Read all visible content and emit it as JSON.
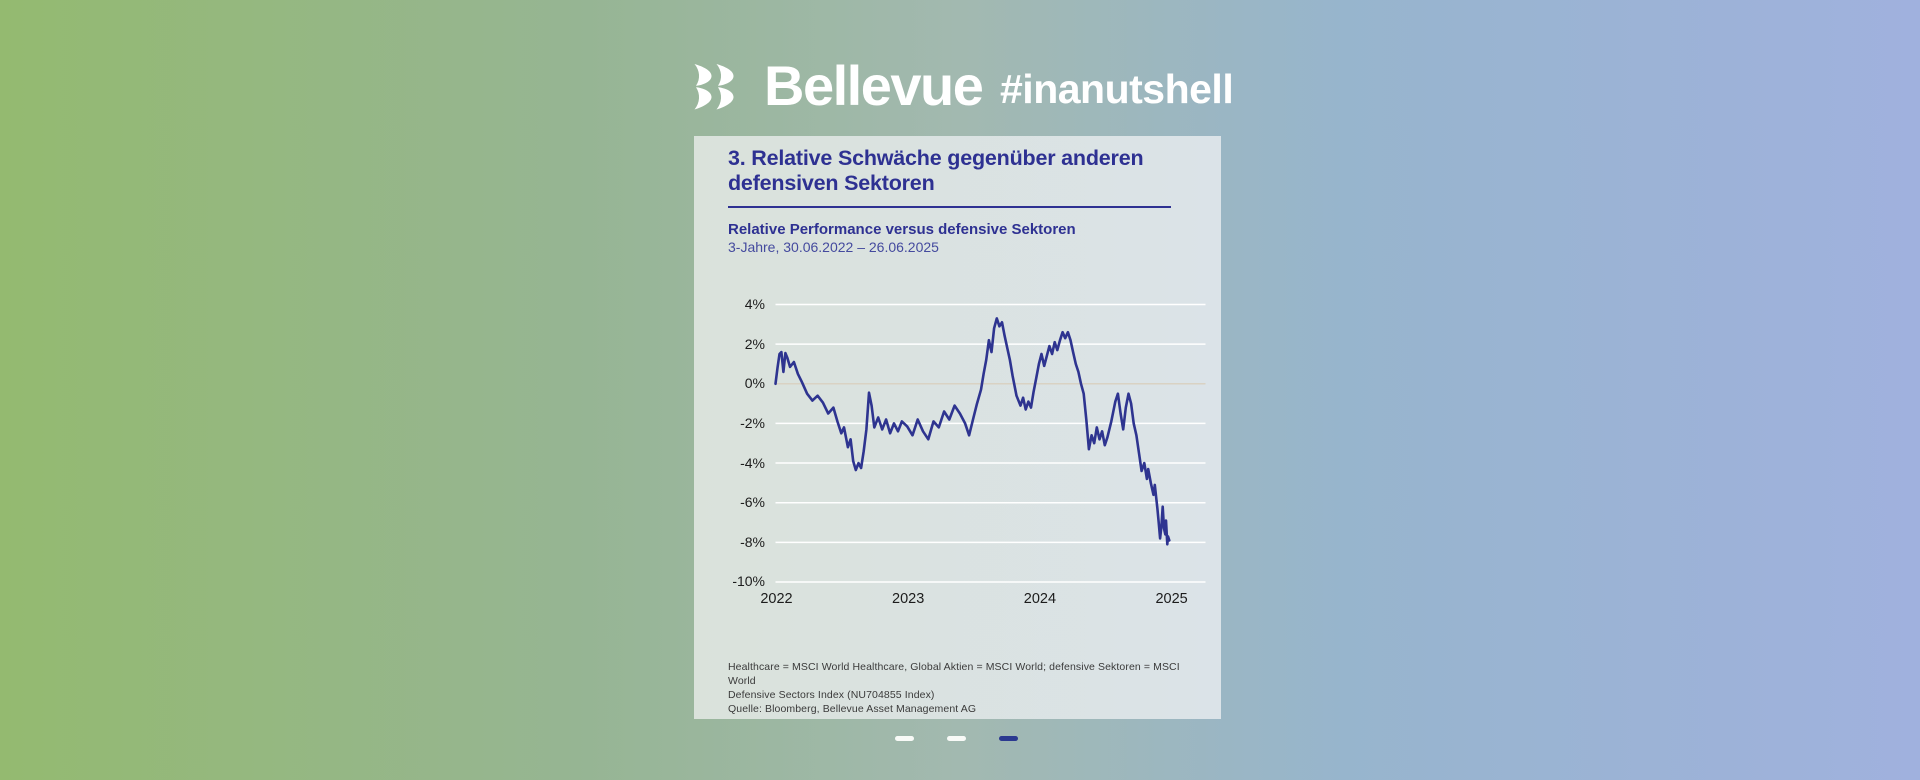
{
  "header": {
    "brand": "Bellevue",
    "hashtag": "#inanutshell"
  },
  "card": {
    "title_line1": "3. Relative Schwäche gegenüber  anderen",
    "title_line2": "defensiven Sektoren",
    "chart_heading": "Relative Performance versus defensive Sektoren",
    "chart_period": "3-Jahre, 30.06.2022 – 26.06.2025",
    "footnote_line1": "Healthcare = MSCI World Healthcare, Global Aktien = MSCI World; defensive Sektoren = MSCI World",
    "footnote_line2": "Defensive Sectors Index (NU704855 Index)",
    "footnote_line3": "Quelle: Bloomberg, Bellevue Asset Management AG"
  },
  "carousel": {
    "dash_count": 3,
    "active_index": 2
  },
  "colors": {
    "brand_navy": "#2e3192",
    "line_navy": "#2e3490",
    "active_dash": "#2b3990",
    "background_left": "#94ba70",
    "background_right": "#a0b1de",
    "card_background": "#dae2e0",
    "gridline": "#ffffff",
    "zero_gridline": "#d9d2c3"
  },
  "chart_data": {
    "type": "line",
    "title": "Relative Performance versus defensive Sektoren",
    "subtitle": "3-Jahre, 30.06.2022 – 26.06.2025",
    "xlabel": "",
    "ylabel": "%",
    "ylim": [
      -10,
      4
    ],
    "yticks": [
      4,
      2,
      0,
      -2,
      -4,
      -6,
      -8,
      -10
    ],
    "ytick_suffix": "%",
    "xticks": [
      {
        "pos": 0,
        "label": "2022"
      },
      {
        "pos": 1,
        "label": "2023"
      },
      {
        "pos": 2,
        "label": "2024"
      },
      {
        "pos": 3,
        "label": "2025"
      }
    ],
    "x_unit": "years_since_30_06_2022",
    "grid": true,
    "legend": "none",
    "line_color": "#2e3490",
    "zero_line_color": "#d9d2c3",
    "points": [
      [
        0.0,
        0.0
      ],
      [
        0.015,
        0.8
      ],
      [
        0.03,
        1.5
      ],
      [
        0.045,
        1.6
      ],
      [
        0.06,
        0.6
      ],
      [
        0.075,
        1.55
      ],
      [
        0.09,
        1.3
      ],
      [
        0.11,
        0.85
      ],
      [
        0.14,
        1.1
      ],
      [
        0.17,
        0.5
      ],
      [
        0.2,
        0.1
      ],
      [
        0.24,
        -0.5
      ],
      [
        0.28,
        -0.85
      ],
      [
        0.32,
        -0.6
      ],
      [
        0.36,
        -0.95
      ],
      [
        0.4,
        -1.5
      ],
      [
        0.44,
        -1.2
      ],
      [
        0.47,
        -1.9
      ],
      [
        0.5,
        -2.5
      ],
      [
        0.52,
        -2.2
      ],
      [
        0.55,
        -3.2
      ],
      [
        0.57,
        -2.8
      ],
      [
        0.59,
        -3.9
      ],
      [
        0.61,
        -4.35
      ],
      [
        0.63,
        -4.0
      ],
      [
        0.65,
        -4.25
      ],
      [
        0.67,
        -3.4
      ],
      [
        0.69,
        -2.3
      ],
      [
        0.71,
        -0.45
      ],
      [
        0.73,
        -1.1
      ],
      [
        0.75,
        -2.2
      ],
      [
        0.78,
        -1.7
      ],
      [
        0.81,
        -2.3
      ],
      [
        0.84,
        -1.8
      ],
      [
        0.87,
        -2.5
      ],
      [
        0.9,
        -2.0
      ],
      [
        0.93,
        -2.4
      ],
      [
        0.96,
        -1.9
      ],
      [
        1.0,
        -2.15
      ],
      [
        1.04,
        -2.6
      ],
      [
        1.08,
        -1.8
      ],
      [
        1.12,
        -2.4
      ],
      [
        1.16,
        -2.8
      ],
      [
        1.2,
        -1.9
      ],
      [
        1.24,
        -2.2
      ],
      [
        1.28,
        -1.4
      ],
      [
        1.32,
        -1.8
      ],
      [
        1.36,
        -1.1
      ],
      [
        1.4,
        -1.5
      ],
      [
        1.44,
        -2.0
      ],
      [
        1.47,
        -2.6
      ],
      [
        1.5,
        -1.8
      ],
      [
        1.53,
        -1.0
      ],
      [
        1.56,
        -0.3
      ],
      [
        1.58,
        0.5
      ],
      [
        1.6,
        1.2
      ],
      [
        1.62,
        2.2
      ],
      [
        1.64,
        1.6
      ],
      [
        1.66,
        2.8
      ],
      [
        1.68,
        3.3
      ],
      [
        1.7,
        2.9
      ],
      [
        1.72,
        3.1
      ],
      [
        1.74,
        2.4
      ],
      [
        1.76,
        1.8
      ],
      [
        1.78,
        1.2
      ],
      [
        1.8,
        0.4
      ],
      [
        1.83,
        -0.6
      ],
      [
        1.86,
        -1.1
      ],
      [
        1.88,
        -0.7
      ],
      [
        1.9,
        -1.3
      ],
      [
        1.92,
        -0.9
      ],
      [
        1.94,
        -1.2
      ],
      [
        1.96,
        -0.4
      ],
      [
        1.98,
        0.3
      ],
      [
        2.0,
        1.0
      ],
      [
        2.02,
        1.5
      ],
      [
        2.04,
        0.9
      ],
      [
        2.06,
        1.4
      ],
      [
        2.08,
        1.9
      ],
      [
        2.1,
        1.5
      ],
      [
        2.12,
        2.1
      ],
      [
        2.14,
        1.7
      ],
      [
        2.16,
        2.2
      ],
      [
        2.18,
        2.6
      ],
      [
        2.2,
        2.3
      ],
      [
        2.22,
        2.6
      ],
      [
        2.24,
        2.2
      ],
      [
        2.26,
        1.6
      ],
      [
        2.28,
        1.0
      ],
      [
        2.3,
        0.6
      ],
      [
        2.32,
        0.0
      ],
      [
        2.34,
        -0.5
      ],
      [
        2.36,
        -1.8
      ],
      [
        2.38,
        -3.3
      ],
      [
        2.4,
        -2.6
      ],
      [
        2.42,
        -3.0
      ],
      [
        2.44,
        -2.2
      ],
      [
        2.46,
        -2.8
      ],
      [
        2.48,
        -2.4
      ],
      [
        2.5,
        -3.1
      ],
      [
        2.52,
        -2.7
      ],
      [
        2.55,
        -1.9
      ],
      [
        2.58,
        -0.9
      ],
      [
        2.6,
        -0.5
      ],
      [
        2.62,
        -1.5
      ],
      [
        2.64,
        -2.3
      ],
      [
        2.66,
        -1.2
      ],
      [
        2.68,
        -0.5
      ],
      [
        2.7,
        -1.0
      ],
      [
        2.72,
        -2.0
      ],
      [
        2.74,
        -2.6
      ],
      [
        2.76,
        -3.5
      ],
      [
        2.78,
        -4.4
      ],
      [
        2.8,
        -4.0
      ],
      [
        2.82,
        -4.8
      ],
      [
        2.83,
        -4.3
      ],
      [
        2.85,
        -5.0
      ],
      [
        2.87,
        -5.6
      ],
      [
        2.88,
        -5.1
      ],
      [
        2.9,
        -6.3
      ],
      [
        2.91,
        -7.0
      ],
      [
        2.92,
        -7.8
      ],
      [
        2.93,
        -7.2
      ],
      [
        2.94,
        -6.2
      ],
      [
        2.95,
        -7.3
      ],
      [
        2.96,
        -7.6
      ],
      [
        2.965,
        -6.9
      ],
      [
        2.975,
        -8.1
      ],
      [
        2.98,
        -7.7
      ],
      [
        2.99,
        -7.9
      ]
    ]
  }
}
